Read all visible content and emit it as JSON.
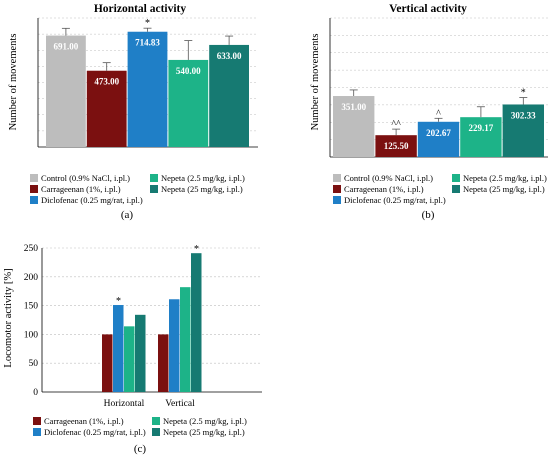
{
  "colors": {
    "control": "#bdbdbd",
    "carrageenan": "#7b1010",
    "diclofenac": "#1f7fc7",
    "nepeta_low": "#1db388",
    "nepeta_high": "#167a72"
  },
  "chart_data": [
    {
      "id": "a",
      "type": "bar",
      "title": "Horizontal activity",
      "ylabel": "Number of movements",
      "ylim": [
        0,
        800
      ],
      "grid": true,
      "series": [
        {
          "name": "Control (0.9% NaCl, i.pl.)",
          "value": 691.0,
          "label": "691.00",
          "error": 45,
          "annotation": "",
          "color_key": "control"
        },
        {
          "name": "Carrageenan (1%, i.pl.)",
          "value": 473.0,
          "label": "473.00",
          "error": 50,
          "annotation": "",
          "color_key": "carrageenan"
        },
        {
          "name": "Diclofenac (0.25 mg/rat, i.pl.)",
          "value": 714.83,
          "label": "714.83",
          "error": 22,
          "annotation": "*",
          "color_key": "diclofenac"
        },
        {
          "name": "Nepeta (2.5 mg/kg, i.pl.)",
          "value": 540.0,
          "label": "540.00",
          "error": 120,
          "annotation": "",
          "color_key": "nepeta_low"
        },
        {
          "name": "Nepeta (25 mg/kg, i.pl.)",
          "value": 633.0,
          "label": "633.00",
          "error": 55,
          "annotation": "",
          "color_key": "nepeta_high"
        }
      ],
      "panel_label": "(a)"
    },
    {
      "id": "b",
      "type": "bar",
      "title": "Vertical activity",
      "ylabel": "Number of movements",
      "ylim": [
        0,
        800
      ],
      "grid": true,
      "series": [
        {
          "name": "Control (0.9% NaCl, i.pl.)",
          "value": 351.0,
          "label": "351.00",
          "error": 35,
          "annotation": "",
          "color_key": "control"
        },
        {
          "name": "Carrageenan (1%, i.pl.)",
          "value": 125.5,
          "label": "125.50",
          "error": 35,
          "annotation": "^^",
          "color_key": "carrageenan"
        },
        {
          "name": "Diclofenac (0.25 mg/rat, i.pl.)",
          "value": 202.67,
          "label": "202.67",
          "error": 20,
          "annotation": "^",
          "color_key": "diclofenac"
        },
        {
          "name": "Nepeta (2.5 mg/kg, i.pl.)",
          "value": 229.17,
          "label": "229.17",
          "error": 60,
          "annotation": "",
          "color_key": "nepeta_low"
        },
        {
          "name": "Nepeta (25 mg/kg, i.pl.)",
          "value": 302.33,
          "label": "302.33",
          "error": 40,
          "annotation": "*",
          "color_key": "nepeta_high"
        }
      ],
      "panel_label": "(b)"
    },
    {
      "id": "c",
      "type": "bar",
      "title": "",
      "ylabel": "Locomotor activity [%]",
      "ylim": [
        0,
        250
      ],
      "yticks": [
        0,
        50,
        100,
        150,
        200,
        250
      ],
      "grid": true,
      "categories": [
        "Horizontal",
        "Vertical"
      ],
      "series": [
        {
          "name": "Carrageenan (1%, i.pl.)",
          "values": [
            100,
            100
          ],
          "annotations": [
            "",
            ""
          ],
          "color_key": "carrageenan"
        },
        {
          "name": "Diclofenac (0.25 mg/rat, i.pl.)",
          "values": [
            151,
            161
          ],
          "annotations": [
            "*",
            ""
          ],
          "color_key": "diclofenac"
        },
        {
          "name": "Nepeta (2.5 mg/kg, i.pl.)",
          "values": [
            114,
            182
          ],
          "annotations": [
            "",
            ""
          ],
          "color_key": "nepeta_low"
        },
        {
          "name": "Nepeta (25 mg/kg, i.pl.)",
          "values": [
            134,
            241
          ],
          "annotations": [
            "",
            "*"
          ],
          "color_key": "nepeta_high"
        }
      ],
      "panel_label": "(c)"
    }
  ]
}
